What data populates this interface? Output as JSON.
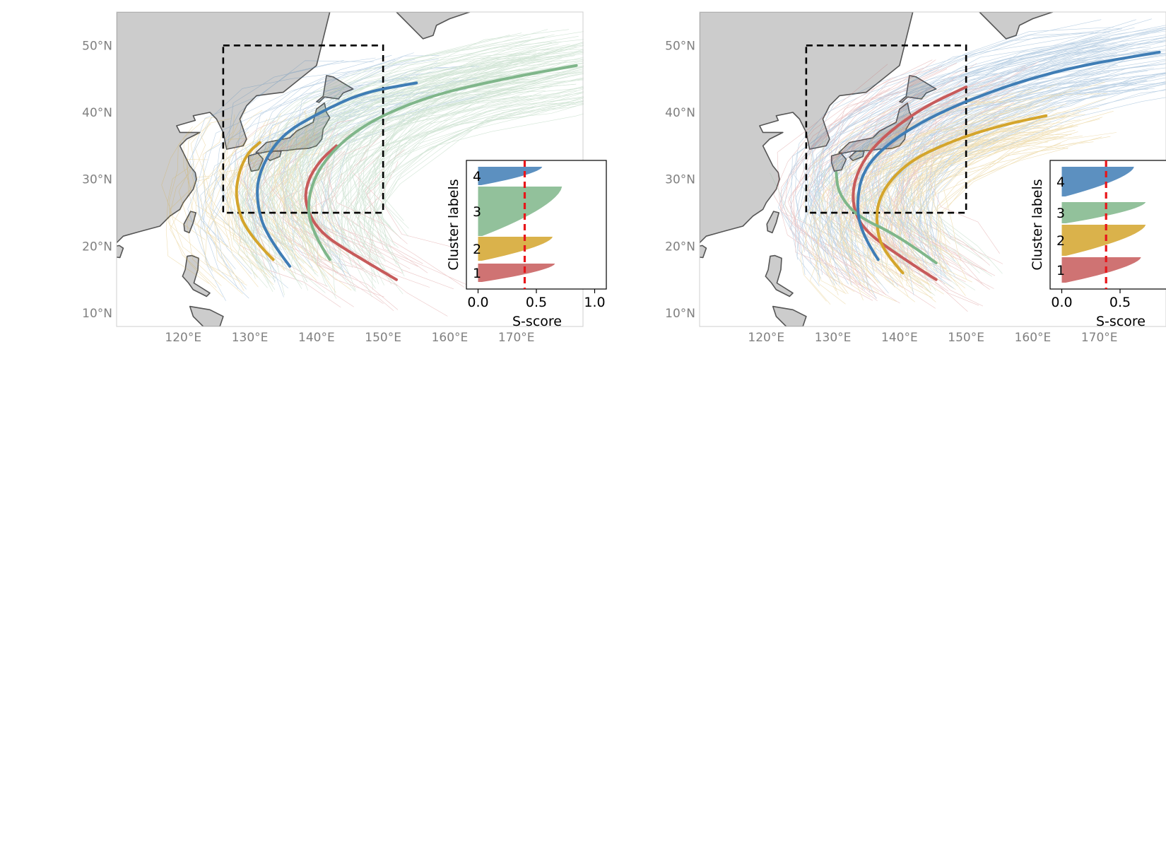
{
  "colors": {
    "cluster1": "#c75b5b",
    "cluster2": "#d4a52c",
    "cluster3": "#7fb68a",
    "cluster4": "#3f7db5",
    "land": "#cccccc",
    "threshold": "#e8161b",
    "box": "#000000"
  },
  "map": {
    "lat_ticks": [
      "10°N",
      "20°N",
      "30°N",
      "40°N",
      "50°N"
    ],
    "lon_ticks": [
      "120°E",
      "130°E",
      "140°E",
      "150°E",
      "160°E",
      "170°E"
    ],
    "study_box": {
      "lon": [
        126,
        150
      ],
      "lat": [
        25,
        50
      ]
    }
  },
  "panels": [
    {
      "id": "left",
      "inset": {
        "ylabel": "Cluster labels",
        "xlabel": "S-score",
        "xticks": [
          "0.0",
          "0.5",
          "1.0"
        ],
        "threshold": 0.4,
        "clusters": [
          {
            "label": "4",
            "max_score": 0.55
          },
          {
            "label": "3",
            "max_score": 0.72
          },
          {
            "label": "2",
            "max_score": 0.64
          },
          {
            "label": "1",
            "max_score": 0.66
          }
        ]
      }
    },
    {
      "id": "right",
      "inset": {
        "ylabel": "Cluster labels",
        "xlabel": "S-score",
        "xticks": [
          "0.0",
          "0.5"
        ],
        "threshold": 0.38,
        "clusters": [
          {
            "label": "4",
            "max_score": 0.62
          },
          {
            "label": "3",
            "max_score": 0.72
          },
          {
            "label": "2",
            "max_score": 0.72
          },
          {
            "label": "1",
            "max_score": 0.68
          }
        ]
      }
    }
  ]
}
